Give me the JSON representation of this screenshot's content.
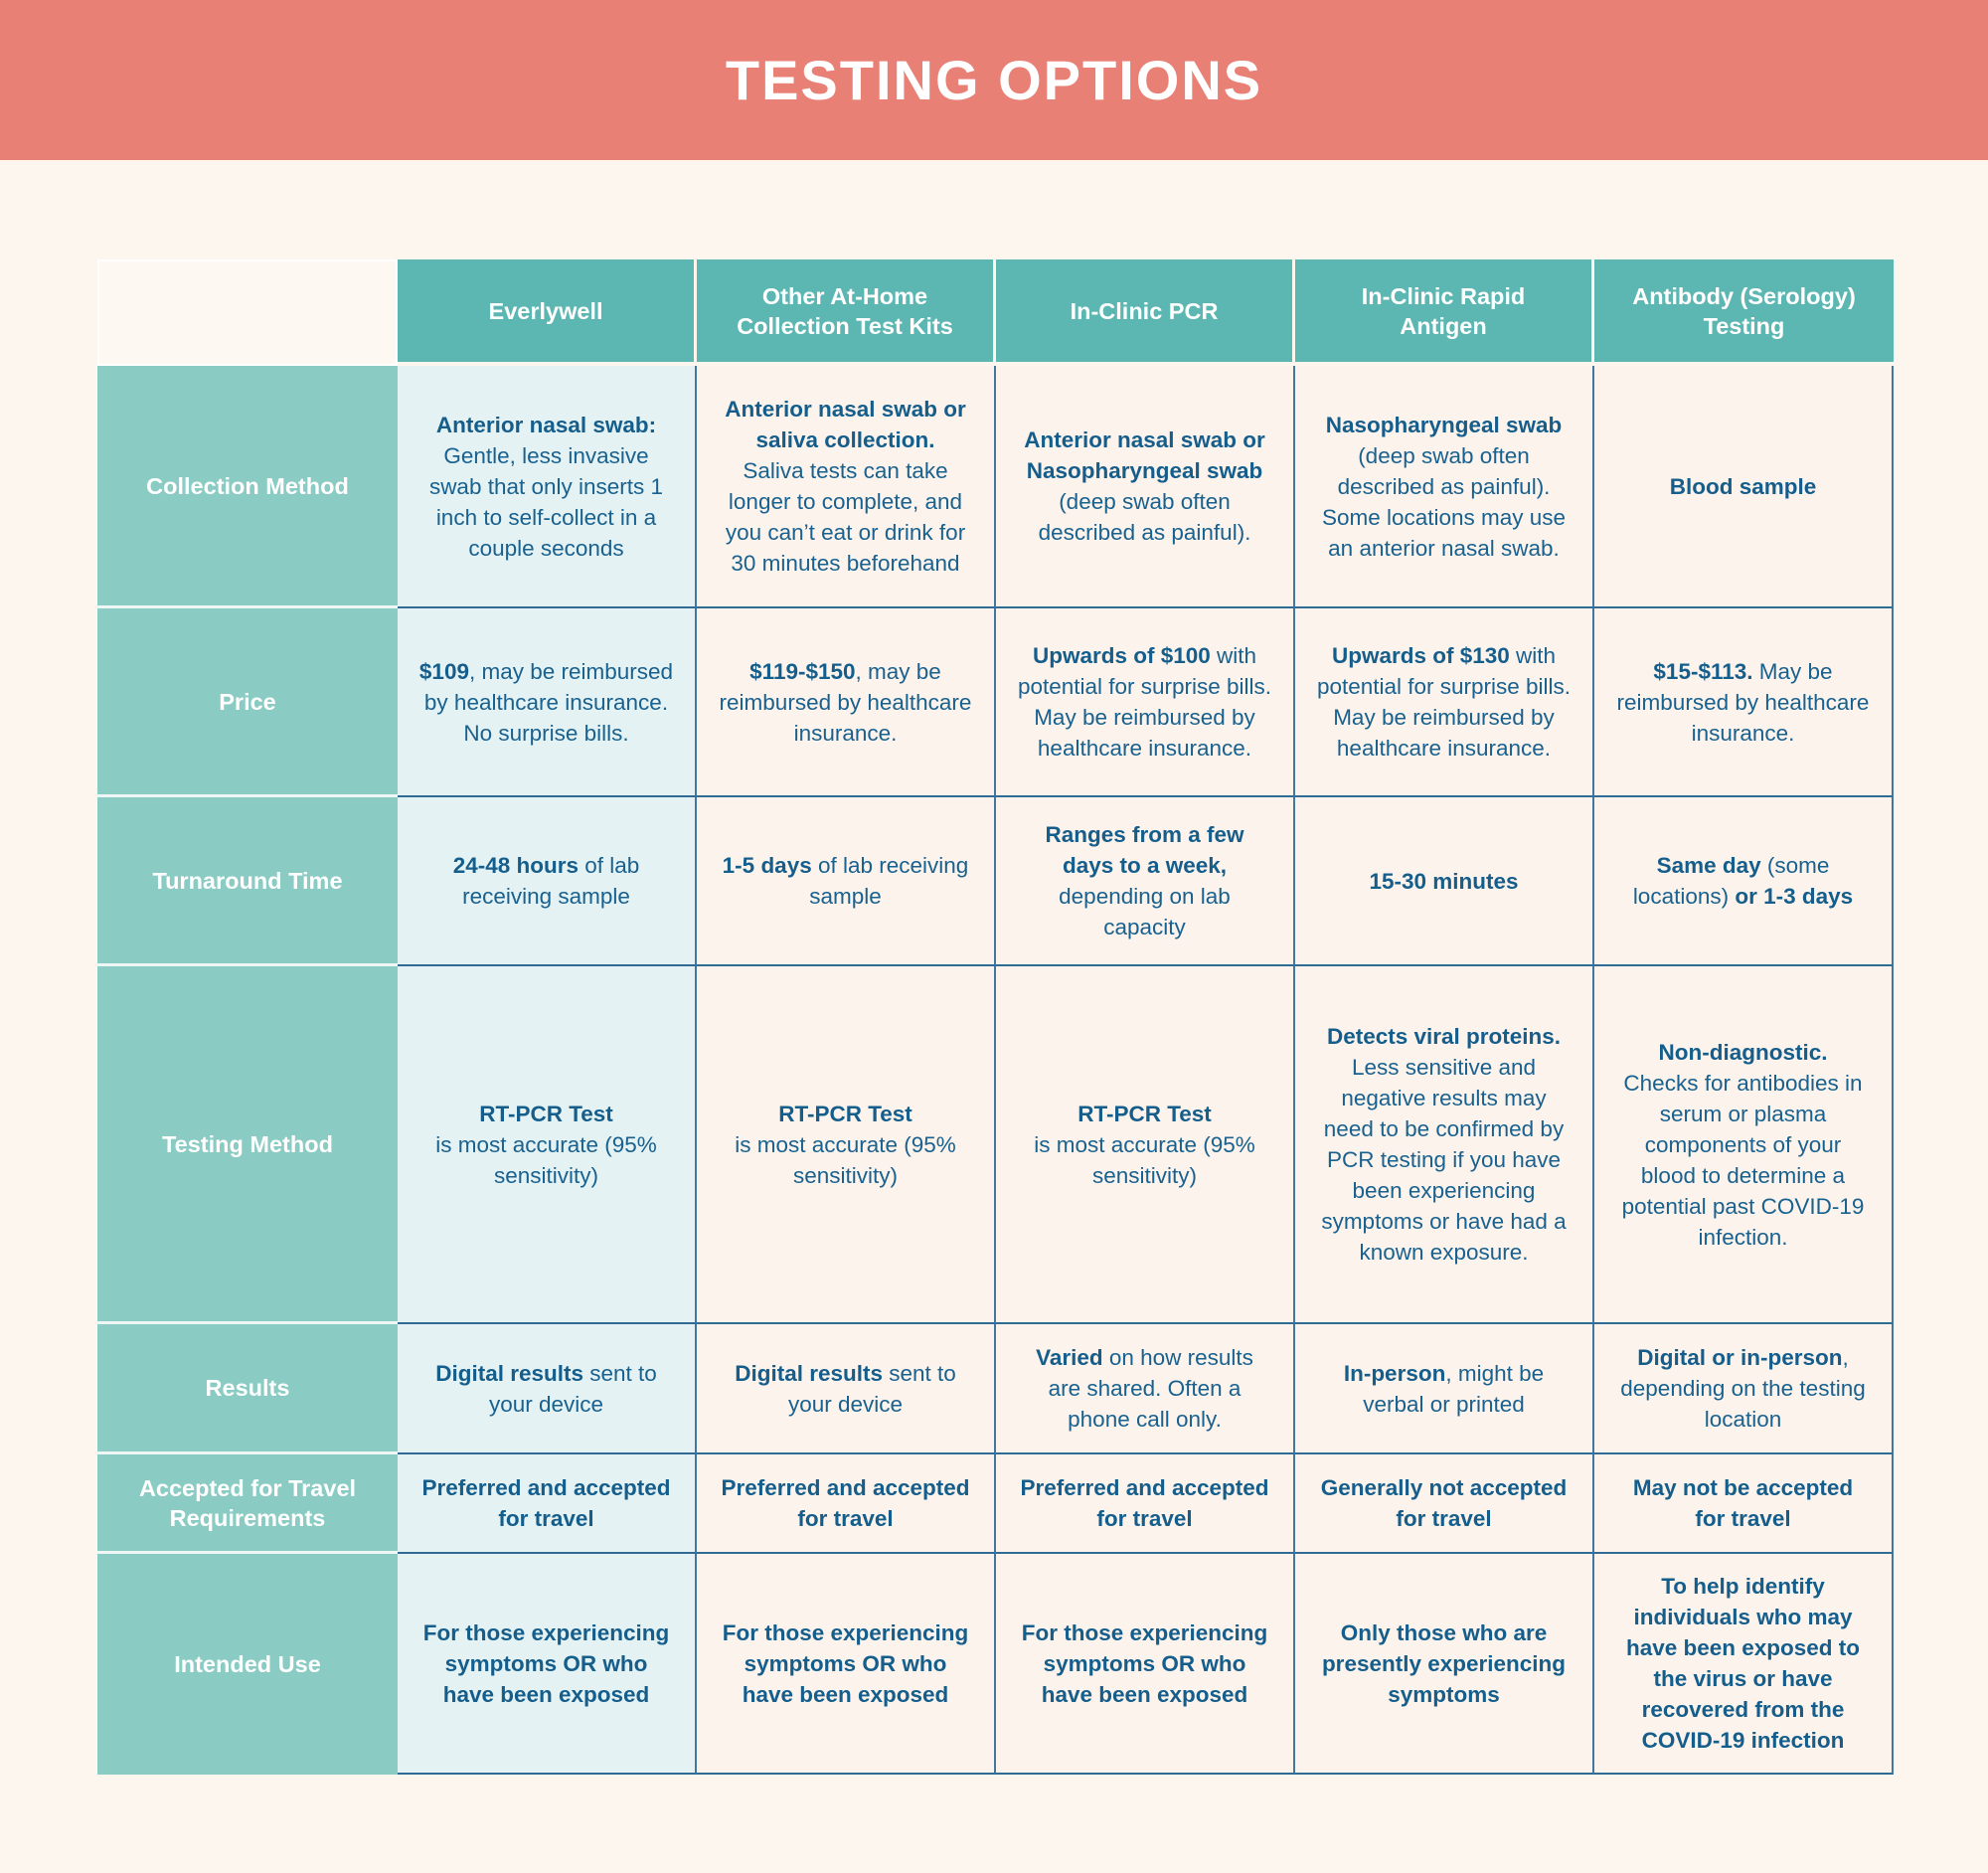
{
  "banner": {
    "title": "TESTING OPTIONS"
  },
  "colors": {
    "banner_bg": "#E98075",
    "column_header_teal": "#5CB7B2",
    "row_header_teal": "#8ACBC3",
    "highlight_cell_bg": "#E4F2F3",
    "cell_bg": "#FCF3EC",
    "page_bg": "#FDF6EF",
    "text_blue": "#19618F",
    "horizontal_line": "#2F6B94",
    "vertical_line": "#42789F"
  },
  "table": {
    "corner_label": "",
    "highlight_column": 0,
    "columns": [
      "Everlywell",
      "Other At-Home Collection Test Kits",
      "In-Clinic PCR",
      "In-Clinic Rapid Antigen",
      "Antibody (Serology) Testing"
    ],
    "rows": [
      {
        "label": "Collection Method",
        "cells": [
          [
            {
              "t": "Anterior nasal swab:",
              "b": true,
              "nl": true
            },
            {
              "t": "Gentle, less invasive swab that only inserts 1 inch to self-collect in a couple seconds",
              "b": false
            }
          ],
          [
            {
              "t": "Anterior nasal swab or saliva collection.",
              "b": true,
              "nl": true
            },
            {
              "t": "Saliva tests can take longer to complete, and you can’t eat or drink for 30 minutes beforehand",
              "b": false
            }
          ],
          [
            {
              "t": "Anterior nasal swab or Nasopharyngeal swab",
              "b": true
            },
            {
              "t": " (deep swab often described as painful).",
              "b": false
            }
          ],
          [
            {
              "t": "Nasopharyngeal swab",
              "b": true
            },
            {
              "t": " (deep swab often described as painful). Some locations may use an anterior nasal swab.",
              "b": false
            }
          ],
          [
            {
              "t": "Blood sample",
              "b": true
            }
          ]
        ]
      },
      {
        "label": "Price",
        "cells": [
          [
            {
              "t": "$109",
              "b": true
            },
            {
              "t": ", may be reimbursed by healthcare insurance. No surprise bills.",
              "b": false
            }
          ],
          [
            {
              "t": "$119-$150",
              "b": true
            },
            {
              "t": ", may be reimbursed by healthcare insurance.",
              "b": false
            }
          ],
          [
            {
              "t": "Upwards of $100",
              "b": true
            },
            {
              "t": " with potential for surprise bills. May be reimbursed by healthcare insurance.",
              "b": false
            }
          ],
          [
            {
              "t": "Upwards of $130",
              "b": true
            },
            {
              "t": " with potential for surprise bills. May be reimbursed by healthcare insurance.",
              "b": false
            }
          ],
          [
            {
              "t": "$15-$113.",
              "b": true
            },
            {
              "t": " May be reimbursed by healthcare insurance.",
              "b": false
            }
          ]
        ]
      },
      {
        "label": "Turnaround Time",
        "cells": [
          [
            {
              "t": "24-48 hours",
              "b": true
            },
            {
              "t": " of lab receiving sample",
              "b": false
            }
          ],
          [
            {
              "t": "1-5 days",
              "b": true
            },
            {
              "t": " of lab receiving sample",
              "b": false
            }
          ],
          [
            {
              "t": "Ranges from a few days  to a week,",
              "b": true,
              "nl": true
            },
            {
              "t": "depending on lab capacity",
              "b": false
            }
          ],
          [
            {
              "t": "15-30 minutes",
              "b": true
            }
          ],
          [
            {
              "t": "Same day",
              "b": true
            },
            {
              "t": " (some locations) ",
              "b": false
            },
            {
              "t": "or 1-3 days",
              "b": true
            }
          ]
        ]
      },
      {
        "label": "Testing Method",
        "cells": [
          [
            {
              "t": "RT-PCR Test",
              "b": true,
              "nl": true
            },
            {
              "t": "is most accurate (95% sensitivity)",
              "b": false
            }
          ],
          [
            {
              "t": "RT-PCR Test",
              "b": true,
              "nl": true
            },
            {
              "t": "is most accurate (95% sensitivity)",
              "b": false
            }
          ],
          [
            {
              "t": "RT-PCR Test",
              "b": true,
              "nl": true
            },
            {
              "t": "is most accurate (95% sensitivity)",
              "b": false
            }
          ],
          [
            {
              "t": "Detects viral proteins.",
              "b": true
            },
            {
              "t": " Less sensitive and negative results may need to be confirmed by PCR testing if you have been experiencing symptoms or have had a known exposure.",
              "b": false
            }
          ],
          [
            {
              "t": "Non-diagnostic.",
              "b": true,
              "nl": true
            },
            {
              "t": "Checks for antibodies in serum or plasma components of your blood to determine a potential past COVID-19 infection.",
              "b": false
            }
          ]
        ]
      },
      {
        "label": "Results",
        "cells": [
          [
            {
              "t": "Digital results",
              "b": true
            },
            {
              "t": " sent to your device",
              "b": false
            }
          ],
          [
            {
              "t": "Digital results",
              "b": true
            },
            {
              "t": " sent to your device",
              "b": false
            }
          ],
          [
            {
              "t": "Varied",
              "b": true
            },
            {
              "t": " on how results are shared. Often a phone call only.",
              "b": false
            }
          ],
          [
            {
              "t": "In-person",
              "b": true
            },
            {
              "t": ", might be verbal or printed",
              "b": false
            }
          ],
          [
            {
              "t": "Digital or in-person",
              "b": true
            },
            {
              "t": ", depending on the testing location",
              "b": false
            }
          ]
        ]
      },
      {
        "label": "Accepted for Travel Requirements",
        "cells": [
          [
            {
              "t": "Preferred and accepted for travel",
              "b": true
            }
          ],
          [
            {
              "t": "Preferred and accepted for travel",
              "b": true
            }
          ],
          [
            {
              "t": "Preferred and accepted for travel",
              "b": true
            }
          ],
          [
            {
              "t": "Generally not accepted for travel",
              "b": true
            }
          ],
          [
            {
              "t": "May not be accepted for travel",
              "b": true
            }
          ]
        ]
      },
      {
        "label": "Intended Use",
        "cells": [
          [
            {
              "t": "For those experiencing symptoms OR who have been exposed",
              "b": true
            }
          ],
          [
            {
              "t": "For those experiencing symptoms OR who have been exposed",
              "b": true
            }
          ],
          [
            {
              "t": "For those experiencing symptoms OR who have been exposed",
              "b": true
            }
          ],
          [
            {
              "t": "Only those who are presently experiencing symptoms",
              "b": true
            }
          ],
          [
            {
              "t": "To help identify individuals who may have been exposed to the virus or have recovered from the COVID-19 infection",
              "b": true
            }
          ]
        ]
      }
    ]
  }
}
